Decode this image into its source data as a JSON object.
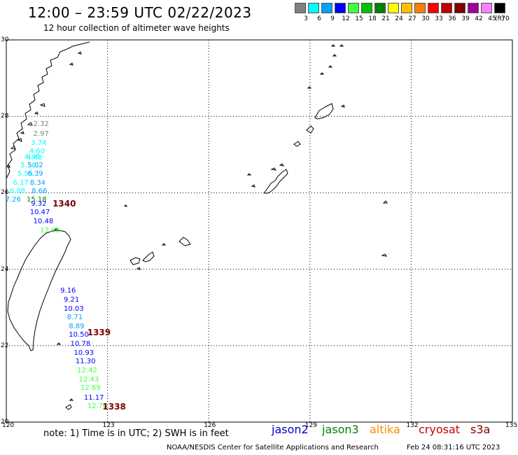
{
  "header": {
    "title": "12:00 – 23:59 UTC 02/22/2023",
    "subtitle": "12 hour collection of altimeter wave heights"
  },
  "colorbar": {
    "unit": "(ft)",
    "labels": [
      "3",
      "6",
      "9",
      "12",
      "15",
      "18",
      "21",
      "24",
      "27",
      "30",
      "33",
      "36",
      "39",
      "42",
      "45",
      "70"
    ],
    "colors": [
      "#808080",
      "#00ffff",
      "#00a0ff",
      "#0000ff",
      "#40ff40",
      "#00c000",
      "#008000",
      "#ffff00",
      "#ffc000",
      "#ff8000",
      "#ff0000",
      "#c00000",
      "#800000",
      "#a000a0",
      "#ff80ff",
      "#000000"
    ]
  },
  "map": {
    "lon_ticks": [
      "120",
      "123",
      "126",
      "129",
      "132",
      "135"
    ],
    "lat_ticks": [
      "30",
      "28",
      "26",
      "24",
      "22",
      "20"
    ],
    "lon_range": [
      120,
      135
    ],
    "lat_range": [
      20,
      30
    ],
    "grid": true,
    "wave_labels": [
      {
        "text": "2.32",
        "lon": 121.05,
        "lat": 27.78,
        "color": "#808080"
      },
      {
        "text": "2.97",
        "lon": 121.05,
        "lat": 27.52,
        "color": "#808080"
      },
      {
        "text": "3.74",
        "lon": 120.98,
        "lat": 27.29,
        "color": "#00ffff"
      },
      {
        "text": "4.60",
        "lon": 120.93,
        "lat": 27.07,
        "color": "#00ffff"
      },
      {
        "text": "4.46",
        "lon": 120.78,
        "lat": 26.93,
        "color": "#00ffff"
      },
      {
        "text": "4.48",
        "lon": 120.85,
        "lat": 26.9,
        "color": "#00ffff"
      },
      {
        "text": "5.56",
        "lon": 120.67,
        "lat": 26.7,
        "color": "#00ffff"
      },
      {
        "text": "5.02",
        "lon": 120.88,
        "lat": 26.7,
        "color": "#00a0ff"
      },
      {
        "text": "5.55",
        "lon": 120.58,
        "lat": 26.48,
        "color": "#00ffff"
      },
      {
        "text": "6.39",
        "lon": 120.88,
        "lat": 26.48,
        "color": "#00a0ff"
      },
      {
        "text": "6.17",
        "lon": 120.45,
        "lat": 26.25,
        "color": "#00ffff"
      },
      {
        "text": "8.34",
        "lon": 120.95,
        "lat": 26.25,
        "color": "#00a0ff"
      },
      {
        "text": "6.88",
        "lon": 120.35,
        "lat": 26.03,
        "color": "#00ffff"
      },
      {
        "text": "8.66",
        "lon": 121.0,
        "lat": 26.02,
        "color": "#00a0ff"
      },
      {
        "text": "7.26",
        "lon": 120.22,
        "lat": 25.8,
        "color": "#00a0ff"
      },
      {
        "text": "15.18",
        "lon": 120.85,
        "lat": 25.8,
        "color": "#008000"
      },
      {
        "text": "9.32",
        "lon": 120.98,
        "lat": 25.7,
        "color": "#0000ff"
      },
      {
        "text": "10.47",
        "lon": 120.95,
        "lat": 25.47,
        "color": "#0000ff"
      },
      {
        "text": "10.48",
        "lon": 121.05,
        "lat": 25.23,
        "color": "#0000ff"
      },
      {
        "text": "17.60",
        "lon": 121.25,
        "lat": 25.0,
        "color": "#40ff40"
      },
      {
        "text": "9.16",
        "lon": 121.85,
        "lat": 23.42,
        "color": "#0000ff"
      },
      {
        "text": "9.21",
        "lon": 121.95,
        "lat": 23.18,
        "color": "#0000ff"
      },
      {
        "text": "10.03",
        "lon": 121.95,
        "lat": 22.95,
        "color": "#0000ff"
      },
      {
        "text": "8.71",
        "lon": 122.05,
        "lat": 22.73,
        "color": "#00a0ff"
      },
      {
        "text": "8.89",
        "lon": 122.1,
        "lat": 22.5,
        "color": "#00a0ff"
      },
      {
        "text": "10.50",
        "lon": 122.1,
        "lat": 22.27,
        "color": "#0000ff"
      },
      {
        "text": "10.78",
        "lon": 122.15,
        "lat": 22.03,
        "color": "#0000ff"
      },
      {
        "text": "10.93",
        "lon": 122.25,
        "lat": 21.8,
        "color": "#0000ff"
      },
      {
        "text": "11.30",
        "lon": 122.3,
        "lat": 21.57,
        "color": "#0000ff"
      },
      {
        "text": "12.42",
        "lon": 122.35,
        "lat": 21.33,
        "color": "#40ff40"
      },
      {
        "text": "12.43",
        "lon": 122.4,
        "lat": 21.1,
        "color": "#40ff40"
      },
      {
        "text": "12.69",
        "lon": 122.45,
        "lat": 20.87,
        "color": "#40ff40"
      },
      {
        "text": "11.17",
        "lon": 122.55,
        "lat": 20.63,
        "color": "#0000ff"
      },
      {
        "text": "12.70",
        "lon": 122.65,
        "lat": 20.4,
        "color": "#40ff40"
      }
    ],
    "pass_labels": [
      {
        "text": "1340",
        "lon": 121.62,
        "lat": 25.72
      },
      {
        "text": "1339",
        "lon": 122.65,
        "lat": 22.35
      },
      {
        "text": "1338",
        "lon": 123.1,
        "lat": 20.4
      }
    ]
  },
  "footer": {
    "note": "note:  1) Time is in UTC;  2) SWH is in feet",
    "satellites": [
      {
        "name": "jason2",
        "color": "#0000cc"
      },
      {
        "name": "jason3",
        "color": "#008000"
      },
      {
        "name": "altika",
        "color": "#ff8c00"
      },
      {
        "name": "cryosat",
        "color": "#cc0000"
      },
      {
        "name": "s3a",
        "color": "#800000"
      }
    ],
    "credit": "NOAA/NESDIS Center for Satellite Applications and Research",
    "timestamp": "Feb 24 08:31:16 UTC 2023"
  }
}
